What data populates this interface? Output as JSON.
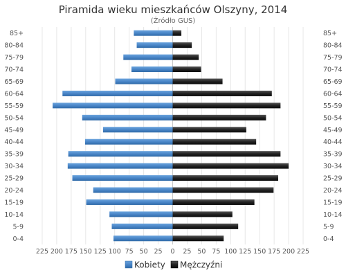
{
  "chart_data": {
    "type": "bar",
    "orientation": "horizontal",
    "layout": "population-pyramid",
    "title": "Piramida wieku mieszkańców Olszyny, 2014",
    "subtitle": "(Źródło  GUS)",
    "categories": [
      "85+",
      "80-84",
      "75-79",
      "70-74",
      "65-69",
      "60-64",
      "55-59",
      "50-54",
      "45-49",
      "40-44",
      "35-39",
      "30-34",
      "25-29",
      "20-24",
      "15-19",
      "10-14",
      "5-9",
      "0-4"
    ],
    "series": [
      {
        "name": "Kobiety",
        "side": "left",
        "color": "#4a86c8",
        "values": [
          67,
          62,
          85,
          71,
          99,
          190,
          207,
          156,
          120,
          151,
          180,
          181,
          173,
          137,
          149,
          109,
          105,
          102
        ]
      },
      {
        "name": "Mężczyźni",
        "side": "right",
        "color": "#222222",
        "values": [
          15,
          33,
          45,
          49,
          86,
          171,
          186,
          161,
          127,
          144,
          186,
          200,
          182,
          174,
          141,
          103,
          113,
          88
        ]
      }
    ],
    "xaxis_ticks": [
      "225",
      "200",
      "175",
      "150",
      "125",
      "100",
      "75",
      "50",
      "25",
      "0",
      "25",
      "50",
      "75",
      "100",
      "125",
      "150",
      "175",
      "200",
      "225"
    ],
    "xlim": [
      -225,
      225
    ],
    "grid": true,
    "legend_position": "bottom"
  }
}
